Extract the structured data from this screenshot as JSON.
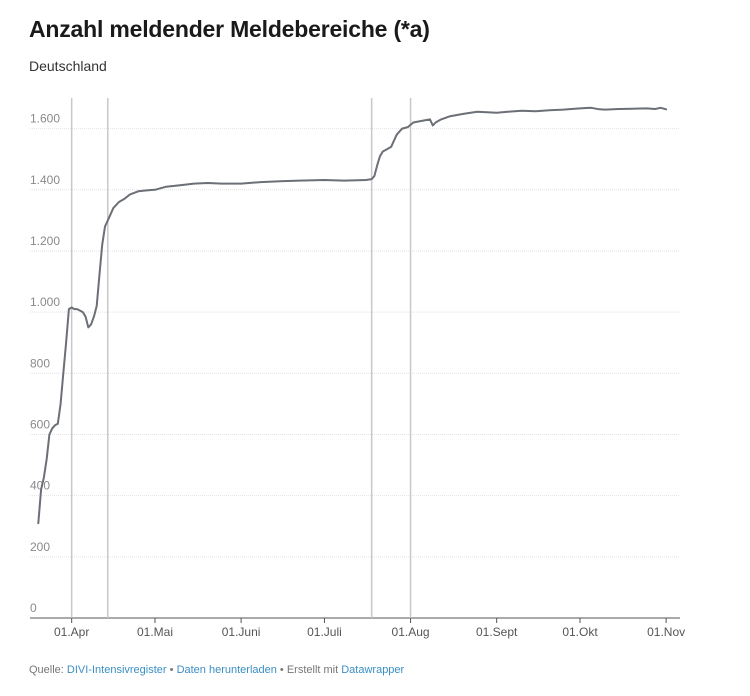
{
  "header": {
    "title": "Anzahl meldender Meldebereiche (*a)",
    "subtitle": "Deutschland"
  },
  "footer": {
    "source_label": "Quelle:",
    "source_link": "DIVI-Intensivregister",
    "separator": "•",
    "download_link": "Daten herunterladen",
    "created_text": "• Erstellt mit",
    "tool_link": "Datawrapper"
  },
  "colors": {
    "line": "#6b6f76",
    "grid": "#e2e2e2",
    "vline": "#c8c8c8",
    "tick_text": "#8a8a8a"
  },
  "chart_data": {
    "type": "line",
    "title": "Anzahl meldender Meldebereiche (*a)",
    "subtitle": "Deutschland",
    "xlabel": "",
    "ylabel": "",
    "ylim": [
      0,
      1700
    ],
    "xlim": [
      "2020-03-17",
      "2020-11-06"
    ],
    "grid": true,
    "x_ticks": [
      {
        "date": "2020-04-01",
        "label": "01.Apr"
      },
      {
        "date": "2020-05-01",
        "label": "01.Mai"
      },
      {
        "date": "2020-06-01",
        "label": "01.Juni"
      },
      {
        "date": "2020-07-01",
        "label": "01.Juli"
      },
      {
        "date": "2020-08-01",
        "label": "01.Aug"
      },
      {
        "date": "2020-09-01",
        "label": "01.Sept"
      },
      {
        "date": "2020-10-01",
        "label": "01.Okt"
      },
      {
        "date": "2020-11-01",
        "label": "01.Nov"
      }
    ],
    "y_ticks": [
      {
        "value": 0,
        "label": "0"
      },
      {
        "value": 200,
        "label": "200"
      },
      {
        "value": 400,
        "label": "400"
      },
      {
        "value": 600,
        "label": "600"
      },
      {
        "value": 800,
        "label": "800"
      },
      {
        "value": 1000,
        "label": "1.000"
      },
      {
        "value": 1200,
        "label": "1.200"
      },
      {
        "value": 1400,
        "label": "1.400"
      },
      {
        "value": 1600,
        "label": "1.600"
      }
    ],
    "vertical_markers": [
      "2020-04-01",
      "2020-04-14",
      "2020-07-18",
      "2020-08-01"
    ],
    "series": [
      {
        "x": [
          "2020-03-20",
          "2020-03-21",
          "2020-03-22",
          "2020-03-23",
          "2020-03-24",
          "2020-03-25",
          "2020-03-26",
          "2020-03-27",
          "2020-03-28",
          "2020-03-29",
          "2020-03-30",
          "2020-03-31",
          "2020-04-01",
          "2020-04-02",
          "2020-04-03",
          "2020-04-04",
          "2020-04-05",
          "2020-04-06",
          "2020-04-07",
          "2020-04-08",
          "2020-04-09",
          "2020-04-10",
          "2020-04-11",
          "2020-04-12",
          "2020-04-13",
          "2020-04-14",
          "2020-04-15",
          "2020-04-16",
          "2020-04-17",
          "2020-04-18",
          "2020-04-20",
          "2020-04-22",
          "2020-04-25",
          "2020-04-28",
          "2020-05-01",
          "2020-05-05",
          "2020-05-10",
          "2020-05-15",
          "2020-05-20",
          "2020-05-25",
          "2020-06-01",
          "2020-06-08",
          "2020-06-15",
          "2020-06-22",
          "2020-07-01",
          "2020-07-08",
          "2020-07-13",
          "2020-07-16",
          "2020-07-18",
          "2020-07-19",
          "2020-07-20",
          "2020-07-21",
          "2020-07-22",
          "2020-07-23",
          "2020-07-25",
          "2020-07-27",
          "2020-07-28",
          "2020-07-29",
          "2020-07-31",
          "2020-08-02",
          "2020-08-05",
          "2020-08-08",
          "2020-08-09",
          "2020-08-10",
          "2020-08-12",
          "2020-08-15",
          "2020-08-20",
          "2020-08-25",
          "2020-09-01",
          "2020-09-05",
          "2020-09-10",
          "2020-09-15",
          "2020-09-20",
          "2020-09-25",
          "2020-10-01",
          "2020-10-05",
          "2020-10-08",
          "2020-10-10",
          "2020-10-15",
          "2020-10-20",
          "2020-10-25",
          "2020-10-28",
          "2020-10-30",
          "2020-11-01"
        ],
        "y": [
          310,
          420,
          460,
          520,
          600,
          620,
          630,
          635,
          700,
          800,
          900,
          1010,
          1015,
          1010,
          1010,
          1005,
          1000,
          985,
          950,
          960,
          985,
          1020,
          1120,
          1220,
          1280,
          1300,
          1320,
          1340,
          1350,
          1360,
          1370,
          1385,
          1395,
          1398,
          1400,
          1410,
          1415,
          1420,
          1422,
          1420,
          1420,
          1425,
          1428,
          1430,
          1432,
          1430,
          1431,
          1432,
          1435,
          1445,
          1480,
          1510,
          1525,
          1530,
          1540,
          1580,
          1590,
          1600,
          1605,
          1620,
          1625,
          1630,
          1610,
          1620,
          1630,
          1640,
          1648,
          1655,
          1652,
          1655,
          1658,
          1657,
          1660,
          1662,
          1666,
          1668,
          1663,
          1662,
          1664,
          1665,
          1666,
          1664,
          1668,
          1663
        ]
      }
    ]
  }
}
